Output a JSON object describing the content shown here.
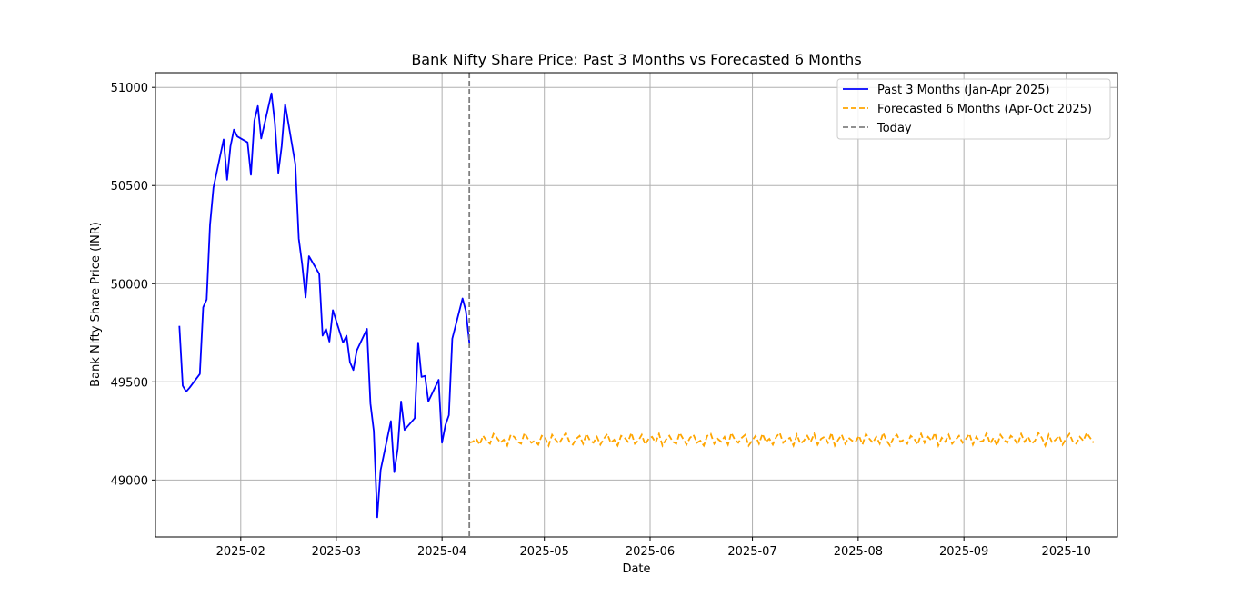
{
  "chart_data": {
    "type": "line",
    "title": "Bank Nifty Share Price: Past 3 Months vs Forecasted 6 Months",
    "xlabel": "Date",
    "ylabel": "Bank Nifty Share Price (INR)",
    "xlim": [
      "2025-01-07",
      "2025-10-16"
    ],
    "ylim": [
      48710,
      51075
    ],
    "grid": true,
    "legend_position": "top-right",
    "x_ticks": [
      "2025-02-01",
      "2025-03-01",
      "2025-04-01",
      "2025-05-01",
      "2025-06-01",
      "2025-07-01",
      "2025-08-01",
      "2025-09-01",
      "2025-10-01"
    ],
    "x_tick_labels": [
      "2025-02",
      "2025-03",
      "2025-04",
      "2025-05",
      "2025-06",
      "2025-07",
      "2025-08",
      "2025-09",
      "2025-10"
    ],
    "y_ticks": [
      49000,
      49500,
      50000,
      50500,
      51000
    ],
    "y_tick_labels": [
      "49000",
      "49500",
      "50000",
      "50500",
      "51000"
    ],
    "today": {
      "name": "Today",
      "date": "2025-04-09",
      "color": "#808080"
    },
    "series": [
      {
        "name": "Past 3 Months (Jan-Apr 2025)",
        "color": "#0000ff",
        "style": "solid",
        "x": [
          "2025-01-14",
          "2025-01-15",
          "2025-01-16",
          "2025-01-17",
          "2025-01-20",
          "2025-01-21",
          "2025-01-22",
          "2025-01-23",
          "2025-01-24",
          "2025-01-27",
          "2025-01-28",
          "2025-01-29",
          "2025-01-30",
          "2025-01-31",
          "2025-02-03",
          "2025-02-04",
          "2025-02-05",
          "2025-02-06",
          "2025-02-07",
          "2025-02-10",
          "2025-02-11",
          "2025-02-12",
          "2025-02-13",
          "2025-02-14",
          "2025-02-17",
          "2025-02-18",
          "2025-02-19",
          "2025-02-20",
          "2025-02-21",
          "2025-02-24",
          "2025-02-25",
          "2025-02-26",
          "2025-02-27",
          "2025-02-28",
          "2025-03-03",
          "2025-03-04",
          "2025-03-05",
          "2025-03-06",
          "2025-03-07",
          "2025-03-10",
          "2025-03-11",
          "2025-03-12",
          "2025-03-13",
          "2025-03-14",
          "2025-03-17",
          "2025-03-18",
          "2025-03-19",
          "2025-03-20",
          "2025-03-21",
          "2025-03-24",
          "2025-03-25",
          "2025-03-26",
          "2025-03-27",
          "2025-03-28",
          "2025-03-31",
          "2025-04-01",
          "2025-04-02",
          "2025-04-03",
          "2025-04-04",
          "2025-04-07",
          "2025-04-08",
          "2025-04-09"
        ],
        "y": [
          49785,
          49480,
          49450,
          49470,
          49540,
          49880,
          49920,
          50300,
          50490,
          50735,
          50530,
          50700,
          50785,
          50750,
          50720,
          50555,
          50830,
          50905,
          50740,
          50970,
          50820,
          50565,
          50700,
          50915,
          50610,
          50230,
          50100,
          49930,
          50140,
          50050,
          49735,
          49770,
          49705,
          49865,
          49700,
          49735,
          49600,
          49560,
          49660,
          49770,
          49390,
          49250,
          48810,
          49050,
          49300,
          49040,
          49160,
          49400,
          49255,
          49315,
          49700,
          49525,
          49530,
          49400,
          49510,
          49190,
          49280,
          49330,
          49720,
          49925,
          49860,
          49700
        ]
      },
      {
        "name": "Forecasted 6 Months (Apr-Oct 2025)",
        "color": "#ffa500",
        "style": "dashed",
        "start": "2025-04-09",
        "end": "2025-10-09",
        "y_min": 49170,
        "y_max": 49245,
        "y": [
          49190,
          49195,
          49210,
          49180,
          49225,
          49200,
          49185,
          49235,
          49215,
          49190,
          49205,
          49175,
          49230,
          49220,
          49195,
          49185,
          49240,
          49210,
          49190,
          49200,
          49180,
          49225,
          49215,
          49175,
          49230,
          49205,
          49185,
          49215,
          49240,
          49195,
          49180,
          49210,
          49225,
          49185,
          49235,
          49200,
          49190,
          49220,
          49180,
          49210,
          49235,
          49190,
          49205,
          49175,
          49225,
          49215,
          49195,
          49240,
          49185,
          49200,
          49230,
          49180,
          49210,
          49220,
          49190,
          49235,
          49175,
          49205,
          49225,
          49195,
          49185,
          49240,
          49210,
          49180,
          49215,
          49230,
          49190,
          49200,
          49175,
          49225,
          49235,
          49185,
          49210,
          49195,
          49220,
          49180,
          49240,
          49205,
          49190,
          49215,
          49230,
          49175,
          49200,
          49225,
          49185,
          49235,
          49195,
          49210,
          49180,
          49220,
          49240,
          49190,
          49205,
          49215,
          49175,
          49230,
          49185,
          49200,
          49225,
          49195,
          49235,
          49180,
          49210,
          49220,
          49190,
          49240,
          49175,
          49205,
          49230,
          49185,
          49215,
          49200,
          49195,
          49225,
          49180,
          49235,
          49210,
          49190,
          49220,
          49185,
          49240,
          49200,
          49175,
          49215,
          49230,
          49195,
          49205,
          49185,
          49225,
          49210,
          49180,
          49235,
          49190,
          49220,
          49200,
          49240,
          49175,
          49215,
          49195,
          49230,
          49185,
          49205,
          49225,
          49190,
          49210,
          49235,
          49180,
          49220,
          49195,
          49200,
          49240,
          49185,
          49215,
          49175,
          49230,
          49205,
          49190,
          49225,
          49210,
          49180,
          49235,
          49195,
          49220,
          49185,
          49200,
          49240,
          49215,
          49175,
          49230,
          49190,
          49205,
          49225,
          49180,
          49210,
          49235,
          49195,
          49185,
          49220,
          49200,
          49240,
          49215,
          49190
        ]
      }
    ]
  }
}
